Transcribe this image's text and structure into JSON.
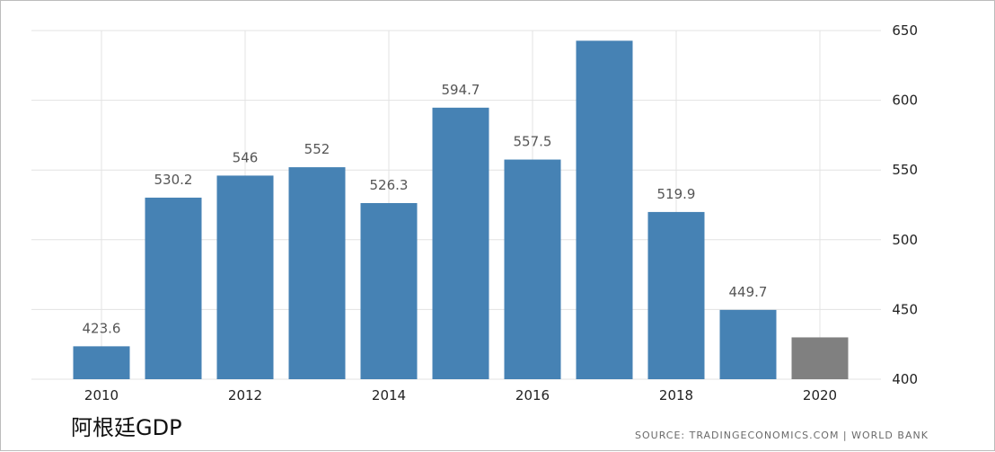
{
  "caption": "阿根廷GDP",
  "source": "SOURCE: TRADINGECONOMICS.COM | WORLD BANK",
  "colors": {
    "bar": "#4682b4",
    "forecast": "#808080",
    "grid": "#e3e3e3",
    "label": "#555555"
  },
  "chart_data": {
    "type": "bar",
    "title": "",
    "xlabel": "",
    "ylabel": "",
    "categories": [
      "2010",
      "2011",
      "2012",
      "2013",
      "2014",
      "2015",
      "2016",
      "2017",
      "2018",
      "2019",
      "2020"
    ],
    "x_tick_labels": [
      "2010",
      "2012",
      "2014",
      "2016",
      "2018",
      "2020"
    ],
    "values": [
      423.6,
      530.2,
      546,
      552,
      526.3,
      594.7,
      557.5,
      642.7,
      519.9,
      449.7,
      430
    ],
    "data_labels": [
      "423.6",
      "530.2",
      "546",
      "552",
      "526.3",
      "594.7",
      "557.5",
      "",
      "519.9",
      "449.7",
      ""
    ],
    "bar_colors": [
      "#4682b4",
      "#4682b4",
      "#4682b4",
      "#4682b4",
      "#4682b4",
      "#4682b4",
      "#4682b4",
      "#4682b4",
      "#4682b4",
      "#4682b4",
      "#808080"
    ],
    "y_ticks": [
      "400",
      "450",
      "500",
      "550",
      "600",
      "650"
    ],
    "ylim": [
      400,
      650
    ],
    "y_axis_side": "right",
    "grid": true,
    "legend": "none"
  }
}
